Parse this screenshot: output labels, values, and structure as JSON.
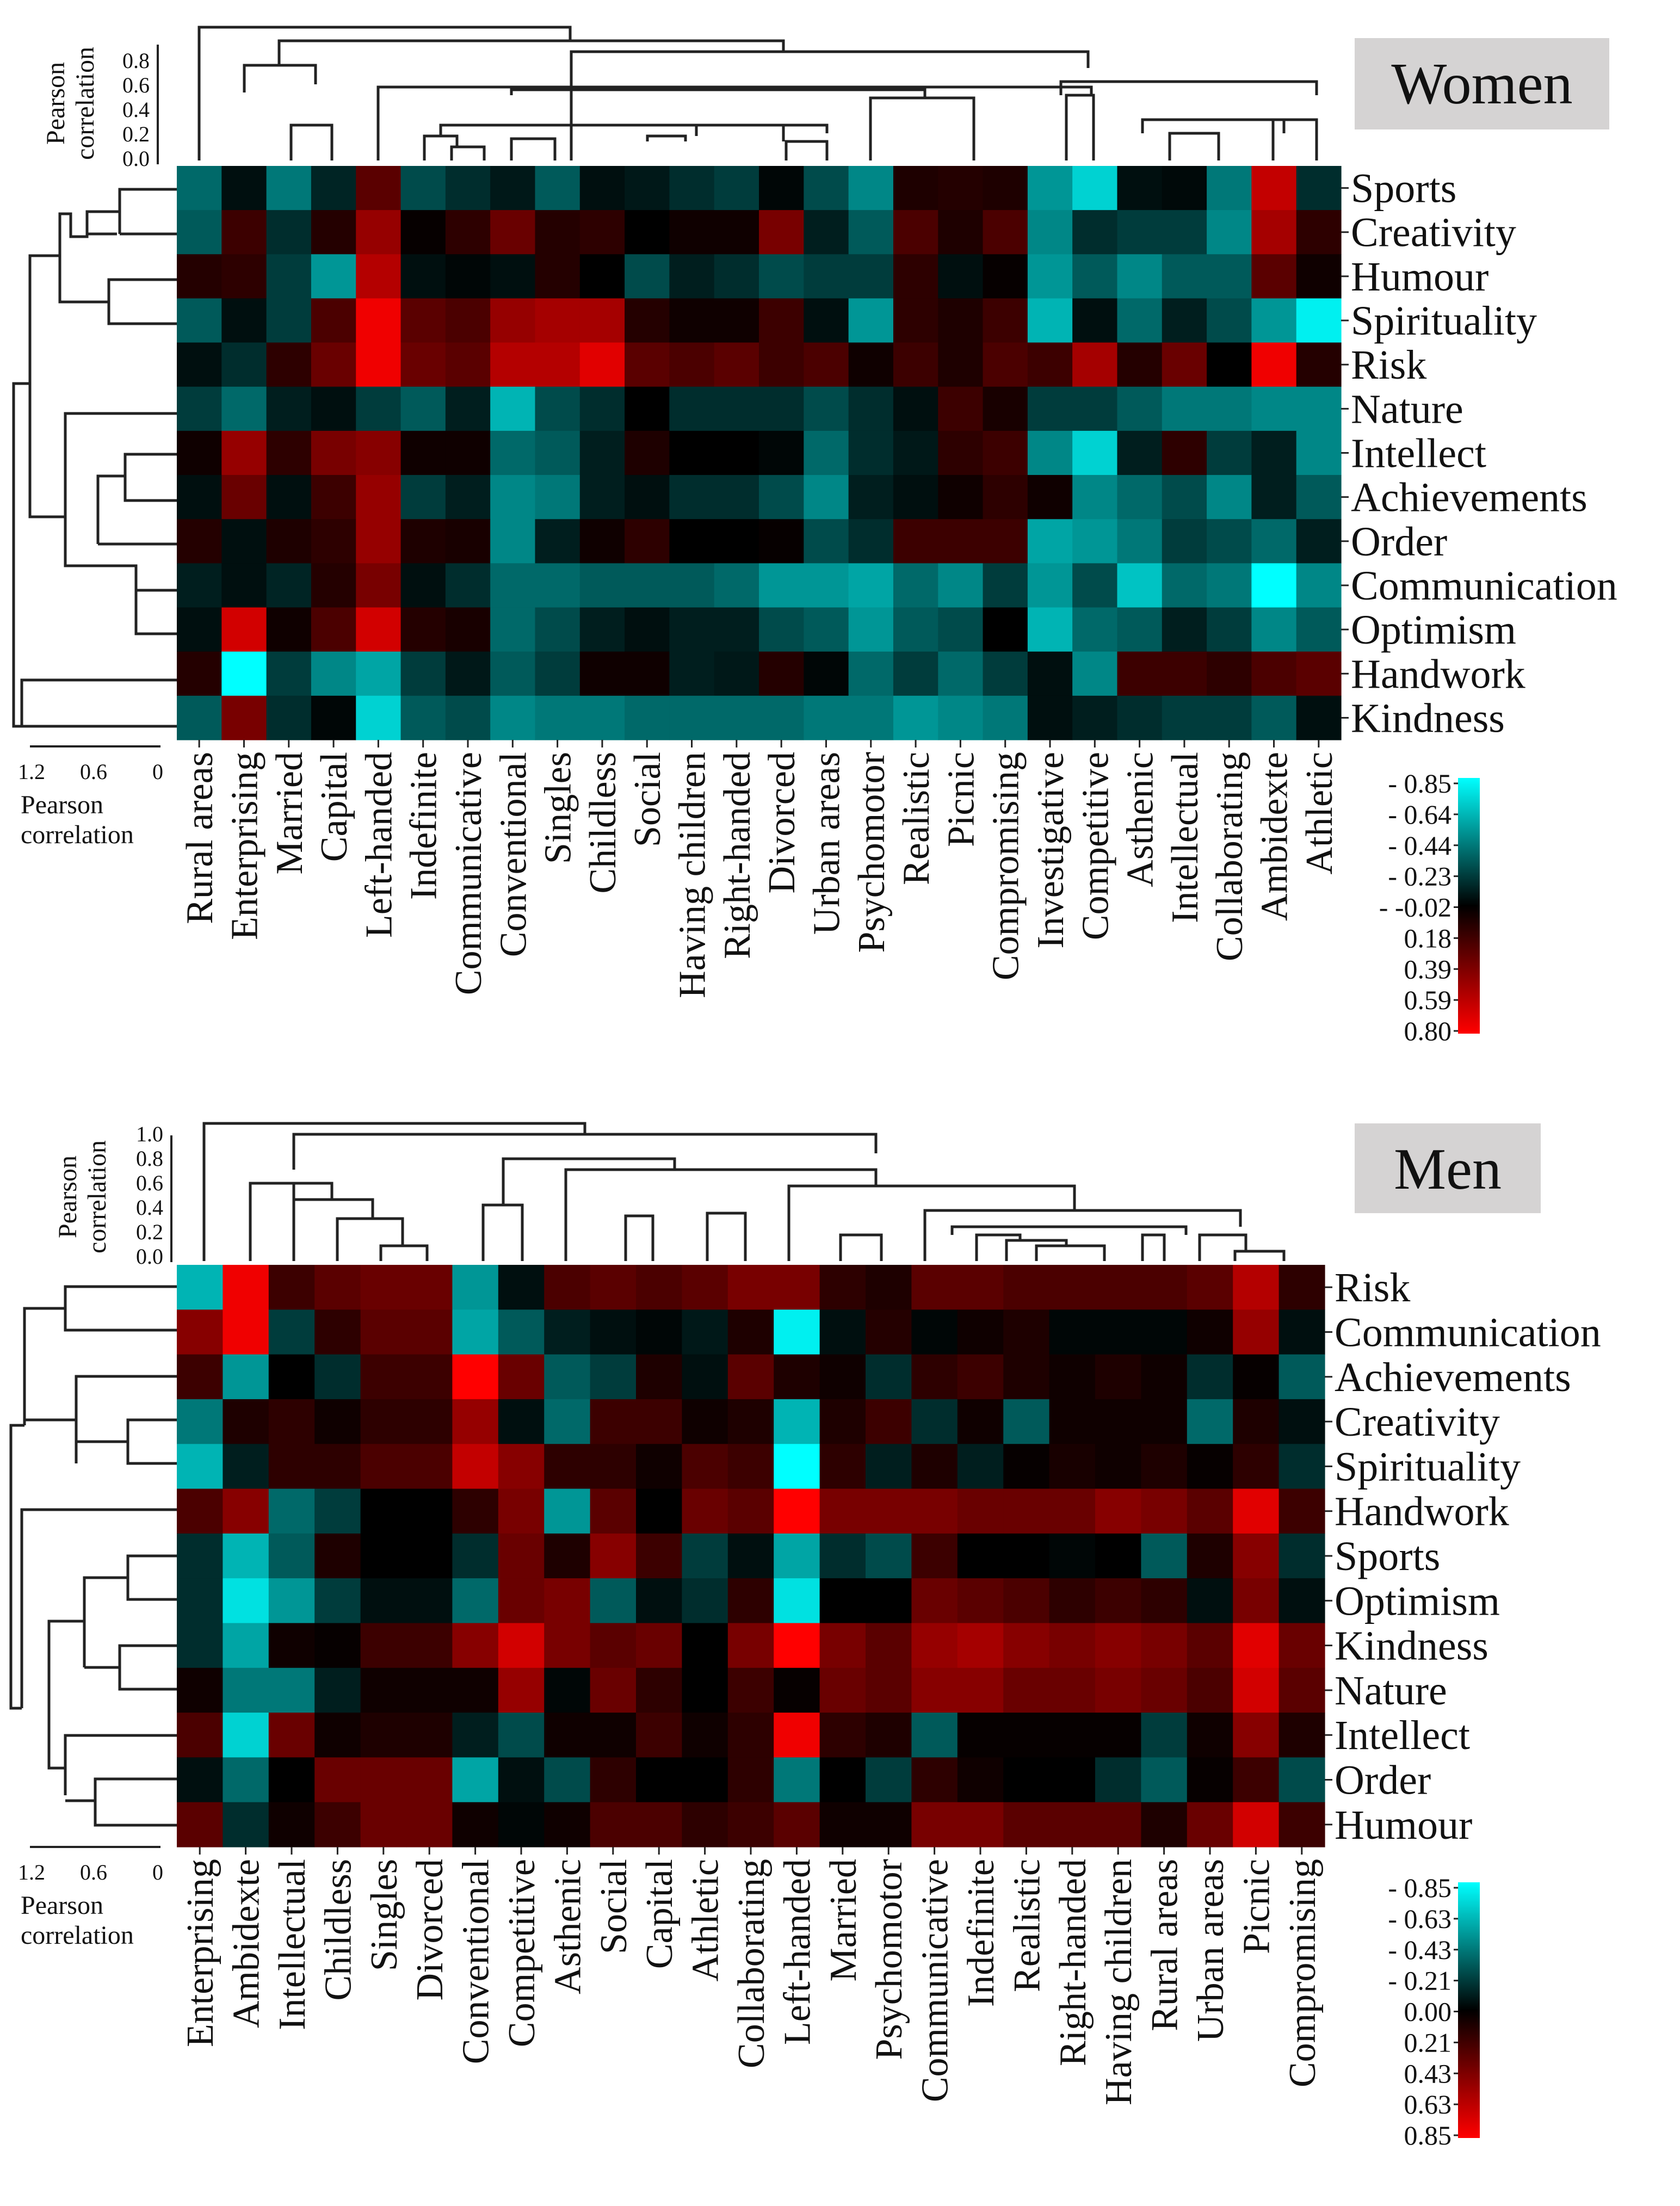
{
  "chart_data": [
    {
      "type": "heatmap",
      "title": "Women",
      "rows": [
        "Sports",
        "Creativity",
        "Humour",
        "Spirituality",
        "Risk",
        "Nature",
        "Intellect",
        "Achievements",
        "Order",
        "Communication",
        "Optimism",
        "Handwork",
        "Kindness"
      ],
      "columns": [
        "Rural areas",
        "Enterprising",
        "Married",
        "Capital",
        "Left-handed",
        "Indefinite",
        "Communicative",
        "Conventional",
        "Singles",
        "Childless",
        "Social",
        "Having children",
        "Right-handed",
        "Divorced",
        "Urban areas",
        "Psychomotor",
        "Realistic",
        "Picnic",
        "Compromising",
        "Investigative",
        "Competitive",
        "Asthenic",
        "Intellectual",
        "Collaborating",
        "Ambidexte",
        "Athletic"
      ],
      "values": [
        [
          -0.35,
          -0.05,
          -0.4,
          -0.12,
          0.3,
          -0.25,
          -0.15,
          -0.08,
          -0.3,
          -0.05,
          -0.08,
          -0.15,
          -0.2,
          -0.02,
          -0.25,
          -0.45,
          0.1,
          0.12,
          0.1,
          -0.5,
          -0.7,
          -0.05,
          -0.03,
          -0.4,
          0.65,
          -0.15
        ],
        [
          -0.3,
          0.2,
          -0.15,
          0.12,
          0.5,
          0.02,
          0.15,
          0.35,
          0.12,
          0.15,
          0.0,
          0.05,
          0.05,
          0.4,
          -0.1,
          -0.3,
          0.25,
          0.1,
          0.25,
          -0.45,
          -0.15,
          -0.2,
          -0.2,
          -0.45,
          0.55,
          0.15
        ],
        [
          0.12,
          0.15,
          -0.2,
          -0.5,
          0.6,
          -0.05,
          -0.02,
          -0.05,
          0.12,
          0.0,
          -0.25,
          -0.1,
          -0.15,
          -0.25,
          -0.2,
          -0.2,
          0.15,
          -0.05,
          0.02,
          -0.5,
          -0.3,
          -0.45,
          -0.3,
          -0.3,
          0.3,
          0.05
        ],
        [
          -0.3,
          -0.05,
          -0.2,
          0.25,
          0.8,
          0.3,
          0.25,
          0.5,
          0.55,
          0.55,
          0.12,
          0.05,
          0.05,
          0.2,
          -0.05,
          -0.5,
          0.15,
          0.1,
          0.2,
          -0.6,
          -0.05,
          -0.35,
          -0.1,
          -0.25,
          -0.5,
          -0.8
        ],
        [
          -0.05,
          -0.15,
          0.15,
          0.35,
          0.8,
          0.35,
          0.3,
          0.6,
          0.6,
          0.75,
          0.3,
          0.25,
          0.3,
          0.2,
          0.25,
          0.05,
          0.2,
          0.1,
          0.25,
          0.2,
          0.55,
          0.12,
          0.35,
          0.0,
          0.8,
          0.12
        ],
        [
          -0.2,
          -0.35,
          -0.1,
          -0.05,
          -0.2,
          -0.3,
          -0.1,
          -0.6,
          -0.25,
          -0.15,
          0.0,
          -0.15,
          -0.15,
          -0.15,
          -0.25,
          -0.15,
          -0.05,
          0.2,
          0.08,
          -0.2,
          -0.2,
          -0.3,
          -0.4,
          -0.4,
          -0.45,
          -0.45
        ],
        [
          0.05,
          0.5,
          0.15,
          0.4,
          0.45,
          0.05,
          0.05,
          -0.35,
          -0.3,
          -0.1,
          0.1,
          0.0,
          0.0,
          -0.02,
          -0.35,
          -0.15,
          -0.08,
          0.15,
          0.2,
          -0.45,
          -0.7,
          -0.1,
          0.15,
          -0.2,
          -0.1,
          -0.45
        ],
        [
          -0.05,
          0.35,
          -0.05,
          0.2,
          0.5,
          -0.2,
          -0.1,
          -0.45,
          -0.4,
          -0.1,
          -0.05,
          -0.15,
          -0.15,
          -0.25,
          -0.45,
          -0.1,
          -0.05,
          0.05,
          0.15,
          0.05,
          -0.45,
          -0.35,
          -0.25,
          -0.45,
          -0.1,
          -0.3
        ],
        [
          0.12,
          -0.05,
          0.1,
          0.15,
          0.5,
          0.1,
          0.08,
          -0.45,
          -0.1,
          0.05,
          0.15,
          0.0,
          0.0,
          0.02,
          -0.25,
          -0.15,
          0.2,
          0.2,
          0.2,
          -0.55,
          -0.5,
          -0.4,
          -0.2,
          -0.25,
          -0.35,
          -0.1
        ],
        [
          -0.1,
          -0.05,
          -0.12,
          0.12,
          0.4,
          -0.05,
          -0.15,
          -0.35,
          -0.35,
          -0.3,
          -0.3,
          -0.3,
          -0.35,
          -0.5,
          -0.5,
          -0.55,
          -0.35,
          -0.45,
          -0.2,
          -0.5,
          -0.25,
          -0.65,
          -0.35,
          -0.4,
          -0.85,
          -0.45
        ],
        [
          -0.05,
          0.7,
          0.05,
          0.25,
          0.7,
          0.12,
          0.08,
          -0.35,
          -0.25,
          -0.1,
          -0.05,
          -0.1,
          -0.1,
          -0.25,
          -0.3,
          -0.5,
          -0.3,
          -0.25,
          0.0,
          -0.6,
          -0.35,
          -0.3,
          -0.1,
          -0.2,
          -0.45,
          -0.3
        ],
        [
          0.12,
          -0.85,
          -0.2,
          -0.45,
          -0.55,
          -0.2,
          -0.08,
          -0.3,
          -0.2,
          0.05,
          0.05,
          -0.1,
          -0.08,
          0.12,
          -0.02,
          -0.35,
          -0.2,
          -0.35,
          -0.2,
          -0.05,
          -0.45,
          0.2,
          0.2,
          0.15,
          0.25,
          0.3
        ],
        [
          -0.3,
          0.4,
          -0.15,
          -0.02,
          -0.7,
          -0.3,
          -0.25,
          -0.45,
          -0.4,
          -0.4,
          -0.35,
          -0.35,
          -0.35,
          -0.35,
          -0.4,
          -0.4,
          -0.5,
          -0.45,
          -0.4,
          -0.05,
          -0.1,
          -0.15,
          -0.2,
          -0.2,
          -0.3,
          -0.05
        ]
      ],
      "colorbar_ticks": [
        "- 0.85",
        "- 0.64",
        "- 0.44",
        "- 0.23",
        "- -0.02",
        "0.18",
        "0.39",
        "0.59",
        "0.80"
      ],
      "dendrogram_axis_ticks": [
        "0.8",
        "0.6",
        "0.4",
        "0.2",
        "0.0"
      ],
      "row_dendrogram_ticks": [
        "1.2",
        "0.6",
        "0"
      ],
      "dendrogram_axis_label": [
        "Pearson",
        "correlation"
      ]
    },
    {
      "type": "heatmap",
      "title": "Men",
      "rows": [
        "Risk",
        "Communication",
        "Achievements",
        "Creativity",
        "Spirituality",
        "Handwork",
        "Sports",
        "Optimism",
        "Kindness",
        "Nature",
        "Intellect",
        "Order",
        "Humour"
      ],
      "columns": [
        "Enterprising",
        "Ambidexte",
        "Intellectual",
        "Childless",
        "Singles",
        "Divorced",
        "Conventional",
        "Competitive",
        "Asthenic",
        "Social",
        "Capital",
        "Athletic",
        "Collaborating",
        "Left-handed",
        "Married",
        "Psychomotor",
        "Communicative",
        "Indefinite",
        "Realistic",
        "Right-handed",
        "Having children",
        "Rural areas",
        "Urban areas",
        "Picnic",
        "Compromising"
      ],
      "values": [
        [
          -0.6,
          0.8,
          0.2,
          0.3,
          0.35,
          0.35,
          -0.5,
          -0.05,
          0.25,
          0.3,
          0.25,
          0.3,
          0.4,
          0.4,
          0.15,
          0.1,
          0.3,
          0.3,
          0.25,
          0.25,
          0.25,
          0.25,
          0.3,
          0.6,
          0.15
        ],
        [
          0.45,
          0.8,
          -0.2,
          0.15,
          0.3,
          0.3,
          -0.55,
          -0.3,
          -0.1,
          -0.05,
          -0.02,
          -0.08,
          0.1,
          -0.8,
          -0.05,
          0.12,
          -0.02,
          0.05,
          0.1,
          -0.02,
          -0.02,
          -0.02,
          0.05,
          0.5,
          -0.05
        ],
        [
          0.2,
          -0.5,
          0.0,
          -0.15,
          0.2,
          0.2,
          0.85,
          0.35,
          -0.3,
          -0.2,
          0.1,
          -0.05,
          0.3,
          0.1,
          0.05,
          -0.15,
          0.15,
          0.2,
          0.1,
          0.05,
          0.1,
          0.05,
          -0.15,
          0.02,
          -0.3
        ],
        [
          -0.4,
          0.1,
          0.15,
          0.05,
          0.15,
          0.15,
          0.5,
          -0.05,
          -0.35,
          0.2,
          0.2,
          0.05,
          0.1,
          -0.6,
          0.1,
          0.2,
          -0.15,
          0.05,
          -0.3,
          0.05,
          0.05,
          0.05,
          -0.35,
          0.1,
          -0.05
        ],
        [
          -0.6,
          -0.1,
          0.15,
          0.15,
          0.25,
          0.25,
          0.65,
          0.45,
          0.15,
          0.15,
          0.05,
          0.25,
          0.2,
          -0.85,
          0.15,
          -0.1,
          0.1,
          -0.1,
          0.02,
          0.08,
          0.05,
          0.1,
          0.02,
          0.15,
          -0.15
        ],
        [
          0.25,
          0.45,
          -0.35,
          -0.2,
          0.0,
          0.0,
          0.15,
          0.4,
          -0.5,
          0.3,
          0.0,
          0.35,
          0.3,
          0.85,
          0.4,
          0.4,
          0.4,
          0.35,
          0.35,
          0.35,
          0.45,
          0.4,
          0.3,
          0.75,
          0.2
        ],
        [
          -0.15,
          -0.6,
          -0.3,
          0.1,
          0.0,
          0.0,
          -0.15,
          0.35,
          0.1,
          0.45,
          0.2,
          -0.2,
          -0.05,
          -0.55,
          -0.15,
          -0.25,
          0.2,
          0.0,
          0.0,
          -0.02,
          0.0,
          -0.3,
          0.1,
          0.45,
          -0.15
        ],
        [
          -0.15,
          -0.75,
          -0.5,
          -0.2,
          -0.05,
          -0.05,
          -0.35,
          0.35,
          0.4,
          -0.3,
          -0.05,
          -0.15,
          0.15,
          -0.75,
          0.0,
          0.0,
          0.35,
          0.3,
          0.25,
          0.15,
          0.2,
          0.15,
          -0.05,
          0.4,
          -0.05
        ],
        [
          -0.15,
          -0.55,
          0.05,
          0.02,
          0.2,
          0.2,
          0.45,
          0.7,
          0.4,
          0.3,
          0.35,
          0.0,
          0.4,
          0.85,
          0.4,
          0.3,
          0.5,
          0.55,
          0.45,
          0.4,
          0.45,
          0.4,
          0.3,
          0.75,
          0.35
        ],
        [
          0.05,
          -0.4,
          -0.4,
          -0.1,
          0.05,
          0.05,
          0.05,
          0.5,
          -0.02,
          0.35,
          0.15,
          0.0,
          0.2,
          0.02,
          0.35,
          0.3,
          0.45,
          0.45,
          0.35,
          0.35,
          0.4,
          0.35,
          0.25,
          0.7,
          0.3
        ],
        [
          0.25,
          -0.7,
          0.35,
          0.05,
          0.1,
          0.1,
          -0.1,
          -0.25,
          0.05,
          0.05,
          0.2,
          0.05,
          0.15,
          0.8,
          0.15,
          0.1,
          -0.3,
          0.02,
          0.02,
          0.02,
          0.02,
          -0.2,
          0.05,
          0.45,
          0.1
        ],
        [
          -0.05,
          -0.35,
          0.0,
          0.35,
          0.35,
          0.35,
          -0.55,
          -0.05,
          -0.25,
          0.15,
          0.0,
          0.0,
          0.15,
          -0.4,
          0.0,
          -0.2,
          0.15,
          0.05,
          0.0,
          0.0,
          -0.15,
          -0.3,
          0.02,
          0.2,
          -0.25
        ],
        [
          0.3,
          -0.15,
          0.05,
          0.2,
          0.35,
          0.35,
          0.05,
          -0.02,
          0.05,
          0.25,
          0.25,
          0.15,
          0.2,
          0.3,
          0.05,
          0.05,
          0.4,
          0.4,
          0.3,
          0.3,
          0.3,
          0.1,
          0.35,
          0.7,
          0.2
        ]
      ],
      "colorbar_ticks": [
        "- 0.85",
        "- 0.63",
        "- 0.43",
        "- 0.21",
        "0.00",
        "0.21",
        "0.43",
        "0.63",
        "0.85"
      ],
      "dendrogram_axis_ticks": [
        "1.0",
        "0.8",
        "0.6",
        "0.4",
        "0.2",
        "0.0"
      ],
      "row_dendrogram_ticks": [
        "1.2",
        "0.6",
        "0"
      ],
      "dendrogram_axis_label": [
        "Pearson",
        "correlation"
      ]
    }
  ],
  "colors": {
    "positive": "#00ffff",
    "zero": "#000000",
    "negative": "#ff0000",
    "title_box": "#d5d3d3",
    "dendrogram": "#222222"
  }
}
